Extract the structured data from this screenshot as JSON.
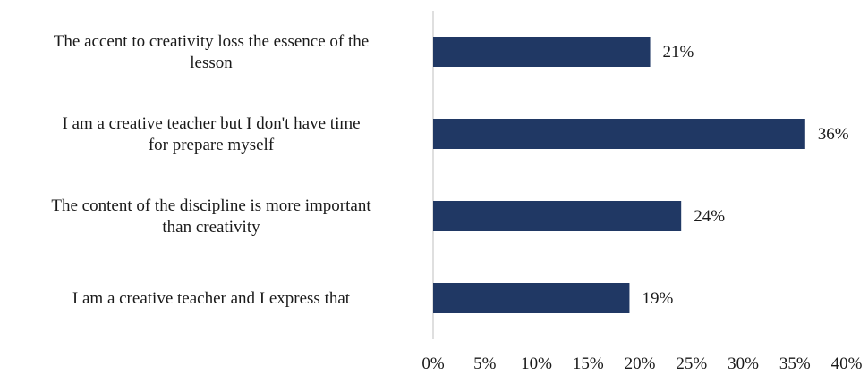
{
  "chart_data": {
    "type": "bar",
    "orientation": "horizontal",
    "categories": [
      [
        "The accent to creativity loss the essence of the",
        "lesson"
      ],
      [
        "I am a creative teacher but I don't have time",
        "for prepare myself"
      ],
      [
        "The content of the discipline is more important",
        "than creativity"
      ],
      [
        "I am a creative teacher and I express that"
      ]
    ],
    "values": [
      21,
      36,
      24,
      19
    ],
    "value_labels": [
      "21%",
      "36%",
      "24%",
      "19%"
    ],
    "xlim": [
      0,
      40
    ],
    "x_ticks": [
      0,
      5,
      10,
      15,
      20,
      25,
      30,
      35,
      40
    ],
    "x_tick_labels": [
      "0%",
      "5%",
      "10%",
      "15%",
      "20%",
      "25%",
      "30%",
      "35%",
      "40%"
    ],
    "bar_color": "#203864",
    "grid": false,
    "legend": "none"
  }
}
